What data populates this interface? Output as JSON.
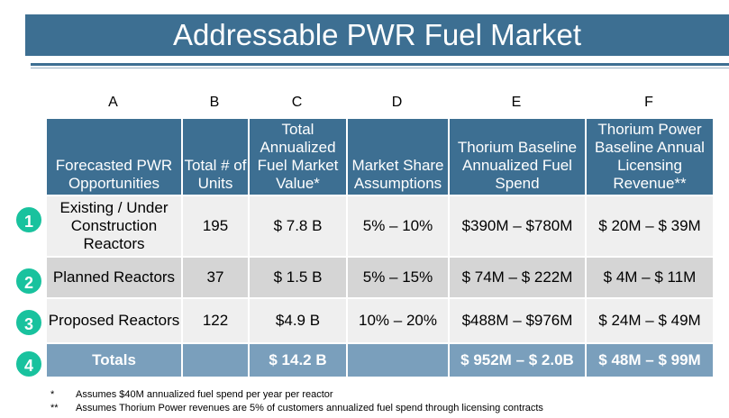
{
  "title": "Addressable PWR Fuel Market",
  "column_letters": [
    "A",
    "B",
    "C",
    "D",
    "E",
    "F"
  ],
  "headers": [
    "Forecasted PWR Opportunities",
    "Total # of Units",
    "Total Annualized Fuel Market Value*",
    "Market Share Assumptions",
    "Thorium Baseline Annualized Fuel Spend",
    "Thorium Power Baseline Annual Licensing Revenue**"
  ],
  "rows": [
    {
      "badge": "1",
      "opportunity": "Existing / Under Construction Reactors",
      "units": "195",
      "market_value": "$ 7.8 B",
      "share": "5% – 10%",
      "fuel_spend": "$390M – $780M",
      "licensing": "$ 20M – $ 39M"
    },
    {
      "badge": "2",
      "opportunity": "Planned Reactors",
      "units": "37",
      "market_value": "$ 1.5 B",
      "share": "5% – 15%",
      "fuel_spend": "$ 74M – $ 222M",
      "licensing": "$ 4M – $ 11M"
    },
    {
      "badge": "3",
      "opportunity": "Proposed Reactors",
      "units": "122",
      "market_value": "$4.9 B",
      "share": "10% – 20%",
      "fuel_spend": "$488M – $976M",
      "licensing": "$ 24M – $ 49M"
    }
  ],
  "totals": {
    "badge": "4",
    "label": "Totals",
    "units": "",
    "market_value": "$ 14.2 B",
    "share": "",
    "fuel_spend": "$ 952M – $ 2.0B",
    "licensing": "$ 48M – $ 99M"
  },
  "footnotes": [
    {
      "mark": "*",
      "text": "Assumes $40M annualized fuel spend per year per reactor"
    },
    {
      "mark": "**",
      "text": "Assumes Thorium Power revenues are 5% of customers annualized fuel spend through licensing contracts"
    }
  ],
  "colors": {
    "header": "#3d6f92",
    "totals": "#7a9fbc",
    "badge": "#19c29e"
  }
}
